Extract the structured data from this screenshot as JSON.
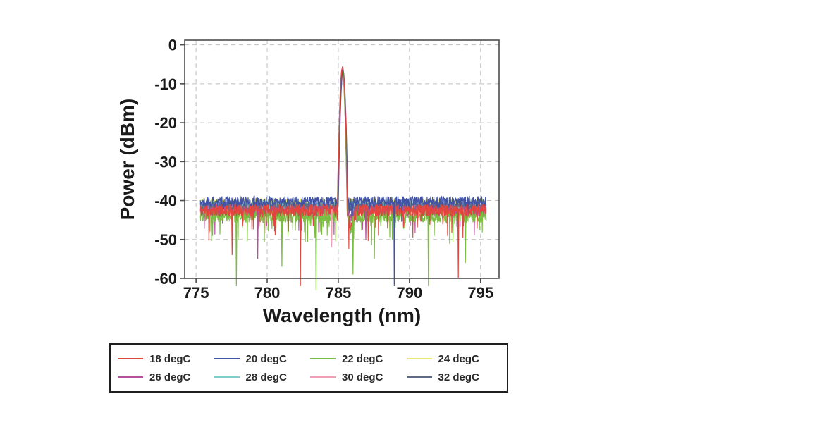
{
  "figure": {
    "background": "#ffffff"
  },
  "chart_data": {
    "type": "line",
    "title": "",
    "xlabel": "Wavelength (nm)",
    "ylabel": "Power (dBm)",
    "xlim": [
      774.2,
      796.3
    ],
    "ylim": [
      -60,
      1.2
    ],
    "xticks": [
      775,
      780,
      785,
      790,
      795
    ],
    "yticks": [
      0,
      -10,
      -20,
      -30,
      -40,
      -50,
      -60
    ],
    "x_range_nm": [
      775.3,
      795.4
    ],
    "grid": {
      "show": true,
      "style": "dashed",
      "color": "#bfbfbf"
    },
    "axis_color": "#4d4d4d",
    "text_color": "#1a1a1a",
    "legend_position": "below",
    "peak": {
      "wavelength_nm": 785.3,
      "power_dbm": -5.6,
      "width_nm": 0.7
    },
    "noise_floor_dbm": {
      "min": -47,
      "max": -39
    },
    "series": [
      {
        "name": "18 degC",
        "color": "#e2453e",
        "noise_base_dbm": -42.5,
        "noise_amp_db": 1.6,
        "spike_prob": 0.05,
        "spike_depth_db": 9,
        "peak_dbm": -5.6,
        "peak_offset_nm": 0.0,
        "notch_db": 5,
        "seed": 11
      },
      {
        "name": "20 degC",
        "color": "#4253a5",
        "noise_base_dbm": -40.3,
        "noise_amp_db": 1.4,
        "spike_prob": 0.03,
        "spike_depth_db": 5,
        "peak_dbm": -6.4,
        "peak_offset_nm": 0.02,
        "notch_db": 0,
        "seed": 22
      },
      {
        "name": "22 degC",
        "color": "#7bbc42",
        "noise_base_dbm": -44.0,
        "noise_amp_db": 1.7,
        "spike_prob": 0.07,
        "spike_depth_db": 10,
        "peak_dbm": -6.6,
        "peak_offset_nm": -0.02,
        "notch_db": 4,
        "seed": 33
      },
      {
        "name": "24 degC",
        "color": "#e6e670",
        "noise_base_dbm": -40.6,
        "noise_amp_db": 1.2,
        "spike_prob": 0.02,
        "spike_depth_db": 4,
        "peak_dbm": -6.9,
        "peak_offset_nm": 0.03,
        "notch_db": 0,
        "seed": 44
      },
      {
        "name": "26 degC",
        "color": "#b5509c",
        "noise_base_dbm": -42.8,
        "noise_amp_db": 1.5,
        "spike_prob": 0.04,
        "spike_depth_db": 7,
        "peak_dbm": -6.2,
        "peak_offset_nm": -0.03,
        "notch_db": 3,
        "seed": 55
      },
      {
        "name": "28 degC",
        "color": "#7fccc9",
        "noise_base_dbm": -41.2,
        "noise_amp_db": 1.3,
        "spike_prob": 0.02,
        "spike_depth_db": 4,
        "peak_dbm": -6.8,
        "peak_offset_nm": 0.01,
        "notch_db": 0,
        "seed": 66
      },
      {
        "name": "30 degC",
        "color": "#f09fb6",
        "noise_base_dbm": -42.2,
        "noise_amp_db": 1.4,
        "spike_prob": 0.03,
        "spike_depth_db": 6,
        "peak_dbm": -6.5,
        "peak_offset_nm": -0.01,
        "notch_db": 0,
        "seed": 77
      },
      {
        "name": "32 degC",
        "color": "#5f6b85",
        "noise_base_dbm": -41.6,
        "noise_amp_db": 1.3,
        "spike_prob": 0.02,
        "spike_depth_db": 5,
        "peak_dbm": -6.7,
        "peak_offset_nm": 0.04,
        "notch_db": 0,
        "seed": 88
      }
    ],
    "draw_order": [
      3,
      6,
      5,
      7,
      4,
      2,
      1,
      0
    ],
    "deep_spikes": [
      {
        "series_index": 2,
        "nm": 777.8,
        "dbm": -62
      },
      {
        "series_index": 2,
        "nm": 781.0,
        "dbm": -57
      },
      {
        "series_index": 2,
        "nm": 783.4,
        "dbm": -63
      },
      {
        "series_index": 2,
        "nm": 786.0,
        "dbm": -59
      },
      {
        "series_index": 2,
        "nm": 787.5,
        "dbm": -55
      },
      {
        "series_index": 2,
        "nm": 791.3,
        "dbm": -62
      },
      {
        "series_index": 2,
        "nm": 793.9,
        "dbm": -56
      },
      {
        "series_index": 0,
        "nm": 777.5,
        "dbm": -54
      },
      {
        "series_index": 0,
        "nm": 782.3,
        "dbm": -62
      },
      {
        "series_index": 0,
        "nm": 793.4,
        "dbm": -60
      },
      {
        "series_index": 1,
        "nm": 788.9,
        "dbm": -62
      },
      {
        "series_index": 4,
        "nm": 779.3,
        "dbm": -55
      },
      {
        "series_index": 4,
        "nm": 786.9,
        "dbm": -50
      },
      {
        "series_index": 6,
        "nm": 784.5,
        "dbm": -52
      }
    ]
  },
  "legend": {
    "rows": 2,
    "columns": 4
  }
}
